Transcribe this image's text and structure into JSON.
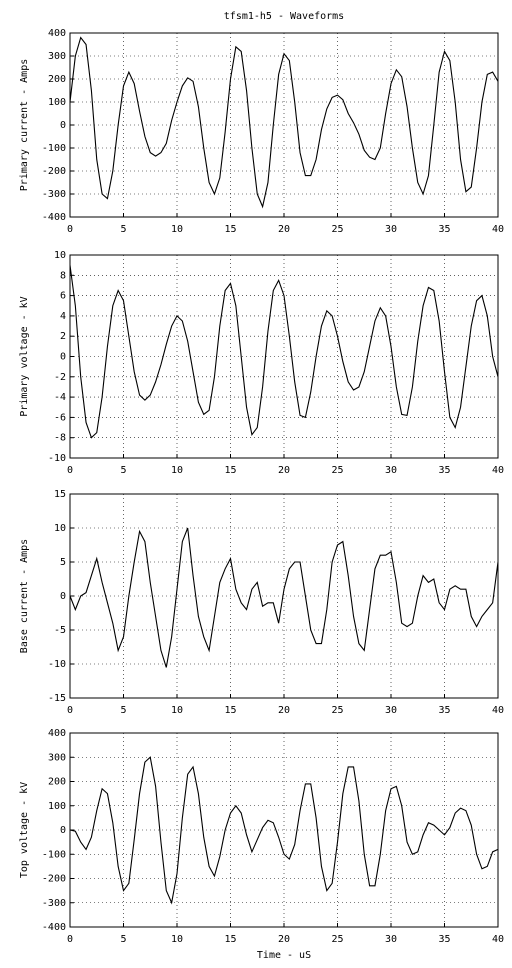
{
  "chart_data": [
    {
      "type": "line",
      "title": "tfsm1-h5 - Waveforms",
      "ylabel": "Primary current - Amps",
      "color": "#000000",
      "grid": true,
      "x": [
        0,
        0.5,
        1,
        1.5,
        2,
        2.5,
        3,
        3.5,
        4,
        4.5,
        5,
        5.5,
        6,
        6.5,
        7,
        7.5,
        8,
        8.5,
        9,
        9.5,
        10,
        10.5,
        11,
        11.5,
        12,
        12.5,
        13,
        13.5,
        14,
        14.5,
        15,
        15.5,
        16,
        16.5,
        17,
        17.5,
        18,
        18.5,
        19,
        19.5,
        20,
        20.5,
        21,
        21.5,
        22,
        22.5,
        23,
        23.5,
        24,
        24.5,
        25,
        25.5,
        26,
        26.5,
        27,
        27.5,
        28,
        28.5,
        29,
        29.5,
        30,
        30.5,
        31,
        31.5,
        32,
        32.5,
        33,
        33.5,
        34,
        34.5,
        35,
        35.5,
        36,
        36.5,
        37,
        37.5,
        38,
        38.5,
        39,
        39.5,
        40
      ],
      "values": [
        100,
        300,
        380,
        350,
        150,
        -150,
        -300,
        -320,
        -200,
        0,
        170,
        230,
        180,
        60,
        -50,
        -120,
        -135,
        -120,
        -80,
        20,
        100,
        170,
        205,
        190,
        80,
        -100,
        -250,
        -300,
        -230,
        -30,
        200,
        340,
        320,
        150,
        -100,
        -300,
        -355,
        -250,
        0,
        220,
        310,
        280,
        100,
        -120,
        -220,
        -220,
        -150,
        -20,
        70,
        120,
        130,
        110,
        50,
        10,
        -40,
        -110,
        -140,
        -150,
        -100,
        50,
        180,
        240,
        210,
        80,
        -100,
        -250,
        -300,
        -220,
        0,
        230,
        320,
        280,
        100,
        -150,
        -290,
        -270,
        -100,
        100,
        220,
        230,
        190
      ],
      "xlim": [
        0,
        40
      ],
      "xticks": [
        0,
        5,
        10,
        15,
        20,
        25,
        30,
        35,
        40
      ],
      "ylim": [
        -400,
        400
      ],
      "yticks": [
        -400,
        -300,
        -200,
        -100,
        0,
        100,
        200,
        300,
        400
      ]
    },
    {
      "type": "line",
      "ylabel": "Primary voltage - kV",
      "color": "#000000",
      "grid": true,
      "x": [
        0,
        0.5,
        1,
        1.5,
        2,
        2.5,
        3,
        3.5,
        4,
        4.5,
        5,
        5.5,
        6,
        6.5,
        7,
        7.5,
        8,
        8.5,
        9,
        9.5,
        10,
        10.5,
        11,
        11.5,
        12,
        12.5,
        13,
        13.5,
        14,
        14.5,
        15,
        15.5,
        16,
        16.5,
        17,
        17.5,
        18,
        18.5,
        19,
        19.5,
        20,
        20.5,
        21,
        21.5,
        22,
        22.5,
        23,
        23.5,
        24,
        24.5,
        25,
        25.5,
        26,
        26.5,
        27,
        27.5,
        28,
        28.5,
        29,
        29.5,
        30,
        30.5,
        31,
        31.5,
        32,
        32.5,
        33,
        33.5,
        34,
        34.5,
        35,
        35.5,
        36,
        36.5,
        37,
        37.5,
        38,
        38.5,
        39,
        39.5,
        40
      ],
      "values": [
        9,
        5,
        -2,
        -6.5,
        -8,
        -7.5,
        -4,
        1,
        5,
        6.5,
        5.5,
        2,
        -1.5,
        -3.8,
        -4.3,
        -3.8,
        -2.5,
        -0.8,
        1.2,
        3,
        4,
        3.5,
        1.5,
        -1.5,
        -4.5,
        -5.7,
        -5.3,
        -2,
        3,
        6.5,
        7.2,
        5,
        0,
        -5,
        -7.7,
        -7,
        -3,
        2.5,
        6.5,
        7.5,
        6,
        2,
        -2.5,
        -5.8,
        -6,
        -3.5,
        0,
        3,
        4.5,
        4,
        2,
        -0.5,
        -2.5,
        -3.3,
        -3,
        -1.5,
        1,
        3.5,
        4.8,
        4,
        1,
        -3,
        -5.7,
        -5.8,
        -3,
        1.5,
        5,
        6.8,
        6.5,
        3.5,
        -1.5,
        -6,
        -7,
        -5,
        -1,
        3,
        5.5,
        6,
        4,
        0,
        -2
      ],
      "xlim": [
        0,
        40
      ],
      "xticks": [
        0,
        5,
        10,
        15,
        20,
        25,
        30,
        35,
        40
      ],
      "ylim": [
        -10,
        10
      ],
      "yticks": [
        -10,
        -8,
        -6,
        -4,
        -2,
        0,
        2,
        4,
        6,
        8,
        10
      ]
    },
    {
      "type": "line",
      "ylabel": "Base current - Amps",
      "color": "#000000",
      "grid": true,
      "x": [
        0,
        0.5,
        1,
        1.5,
        2,
        2.5,
        3,
        3.5,
        4,
        4.5,
        5,
        5.5,
        6,
        6.5,
        7,
        7.5,
        8,
        8.5,
        9,
        9.5,
        10,
        10.5,
        11,
        11.5,
        12,
        12.5,
        13,
        13.5,
        14,
        14.5,
        15,
        15.5,
        16,
        16.5,
        17,
        17.5,
        18,
        18.5,
        19,
        19.5,
        20,
        20.5,
        21,
        21.5,
        22,
        22.5,
        23,
        23.5,
        24,
        24.5,
        25,
        25.5,
        26,
        26.5,
        27,
        27.5,
        28,
        28.5,
        29,
        29.5,
        30,
        30.5,
        31,
        31.5,
        32,
        32.5,
        33,
        33.5,
        34,
        34.5,
        35,
        35.5,
        36,
        36.5,
        37,
        37.5,
        38,
        38.5,
        39,
        39.5,
        40
      ],
      "values": [
        0,
        -2,
        0,
        0.5,
        3,
        5.5,
        2,
        -1,
        -4,
        -8,
        -6,
        0,
        5,
        9.5,
        8,
        2,
        -3,
        -8,
        -10.5,
        -6,
        1,
        8,
        10,
        3,
        -3,
        -6,
        -8,
        -3,
        2,
        4,
        5.5,
        1,
        -1,
        -2,
        1,
        2,
        -1.5,
        -1,
        -1,
        -4,
        1,
        4,
        5,
        5,
        0,
        -5,
        -7,
        -7,
        -2,
        5,
        7.5,
        8,
        3,
        -3,
        -7,
        -8,
        -2,
        4,
        6,
        6,
        6.5,
        2,
        -4,
        -4.5,
        -4,
        0,
        3,
        2,
        2.5,
        -1,
        -2,
        1,
        1.5,
        1,
        1,
        -3,
        -4.5,
        -3,
        -2,
        -1,
        5
      ],
      "xlim": [
        0,
        40
      ],
      "xticks": [
        0,
        5,
        10,
        15,
        20,
        25,
        30,
        35,
        40
      ],
      "ylim": [
        -15,
        15
      ],
      "yticks": [
        -15,
        -10,
        -5,
        0,
        5,
        10,
        15
      ]
    },
    {
      "type": "line",
      "ylabel": "Top voltage - kV",
      "xlabel": "Time - uS",
      "color": "#000000",
      "grid": true,
      "x": [
        0,
        0.5,
        1,
        1.5,
        2,
        2.5,
        3,
        3.5,
        4,
        4.5,
        5,
        5.5,
        6,
        6.5,
        7,
        7.5,
        8,
        8.5,
        9,
        9.5,
        10,
        10.5,
        11,
        11.5,
        12,
        12.5,
        13,
        13.5,
        14,
        14.5,
        15,
        15.5,
        16,
        16.5,
        17,
        17.5,
        18,
        18.5,
        19,
        19.5,
        20,
        20.5,
        21,
        21.5,
        22,
        22.5,
        23,
        23.5,
        24,
        24.5,
        25,
        25.5,
        26,
        26.5,
        27,
        27.5,
        28,
        28.5,
        29,
        29.5,
        30,
        30.5,
        31,
        31.5,
        32,
        32.5,
        33,
        33.5,
        34,
        34.5,
        35,
        35.5,
        36,
        36.5,
        37,
        37.5,
        38,
        38.5,
        39,
        39.5,
        40
      ],
      "values": [
        0,
        -5,
        -50,
        -80,
        -30,
        80,
        170,
        150,
        30,
        -150,
        -250,
        -220,
        -40,
        150,
        280,
        300,
        180,
        -50,
        -250,
        -300,
        -180,
        50,
        230,
        260,
        150,
        -30,
        -150,
        -190,
        -110,
        0,
        70,
        100,
        70,
        -20,
        -90,
        -40,
        10,
        40,
        30,
        -30,
        -100,
        -120,
        -60,
        80,
        190,
        190,
        50,
        -150,
        -250,
        -220,
        -50,
        150,
        260,
        260,
        120,
        -100,
        -230,
        -230,
        -100,
        80,
        170,
        180,
        100,
        -50,
        -100,
        -90,
        -20,
        30,
        20,
        0,
        -20,
        10,
        70,
        90,
        80,
        20,
        -100,
        -160,
        -150,
        -90,
        -80
      ],
      "xlim": [
        0,
        40
      ],
      "xticks": [
        0,
        5,
        10,
        15,
        20,
        25,
        30,
        35,
        40
      ],
      "ylim": [
        -400,
        400
      ],
      "yticks": [
        -400,
        -300,
        -200,
        -100,
        0,
        100,
        200,
        300,
        400
      ]
    }
  ]
}
